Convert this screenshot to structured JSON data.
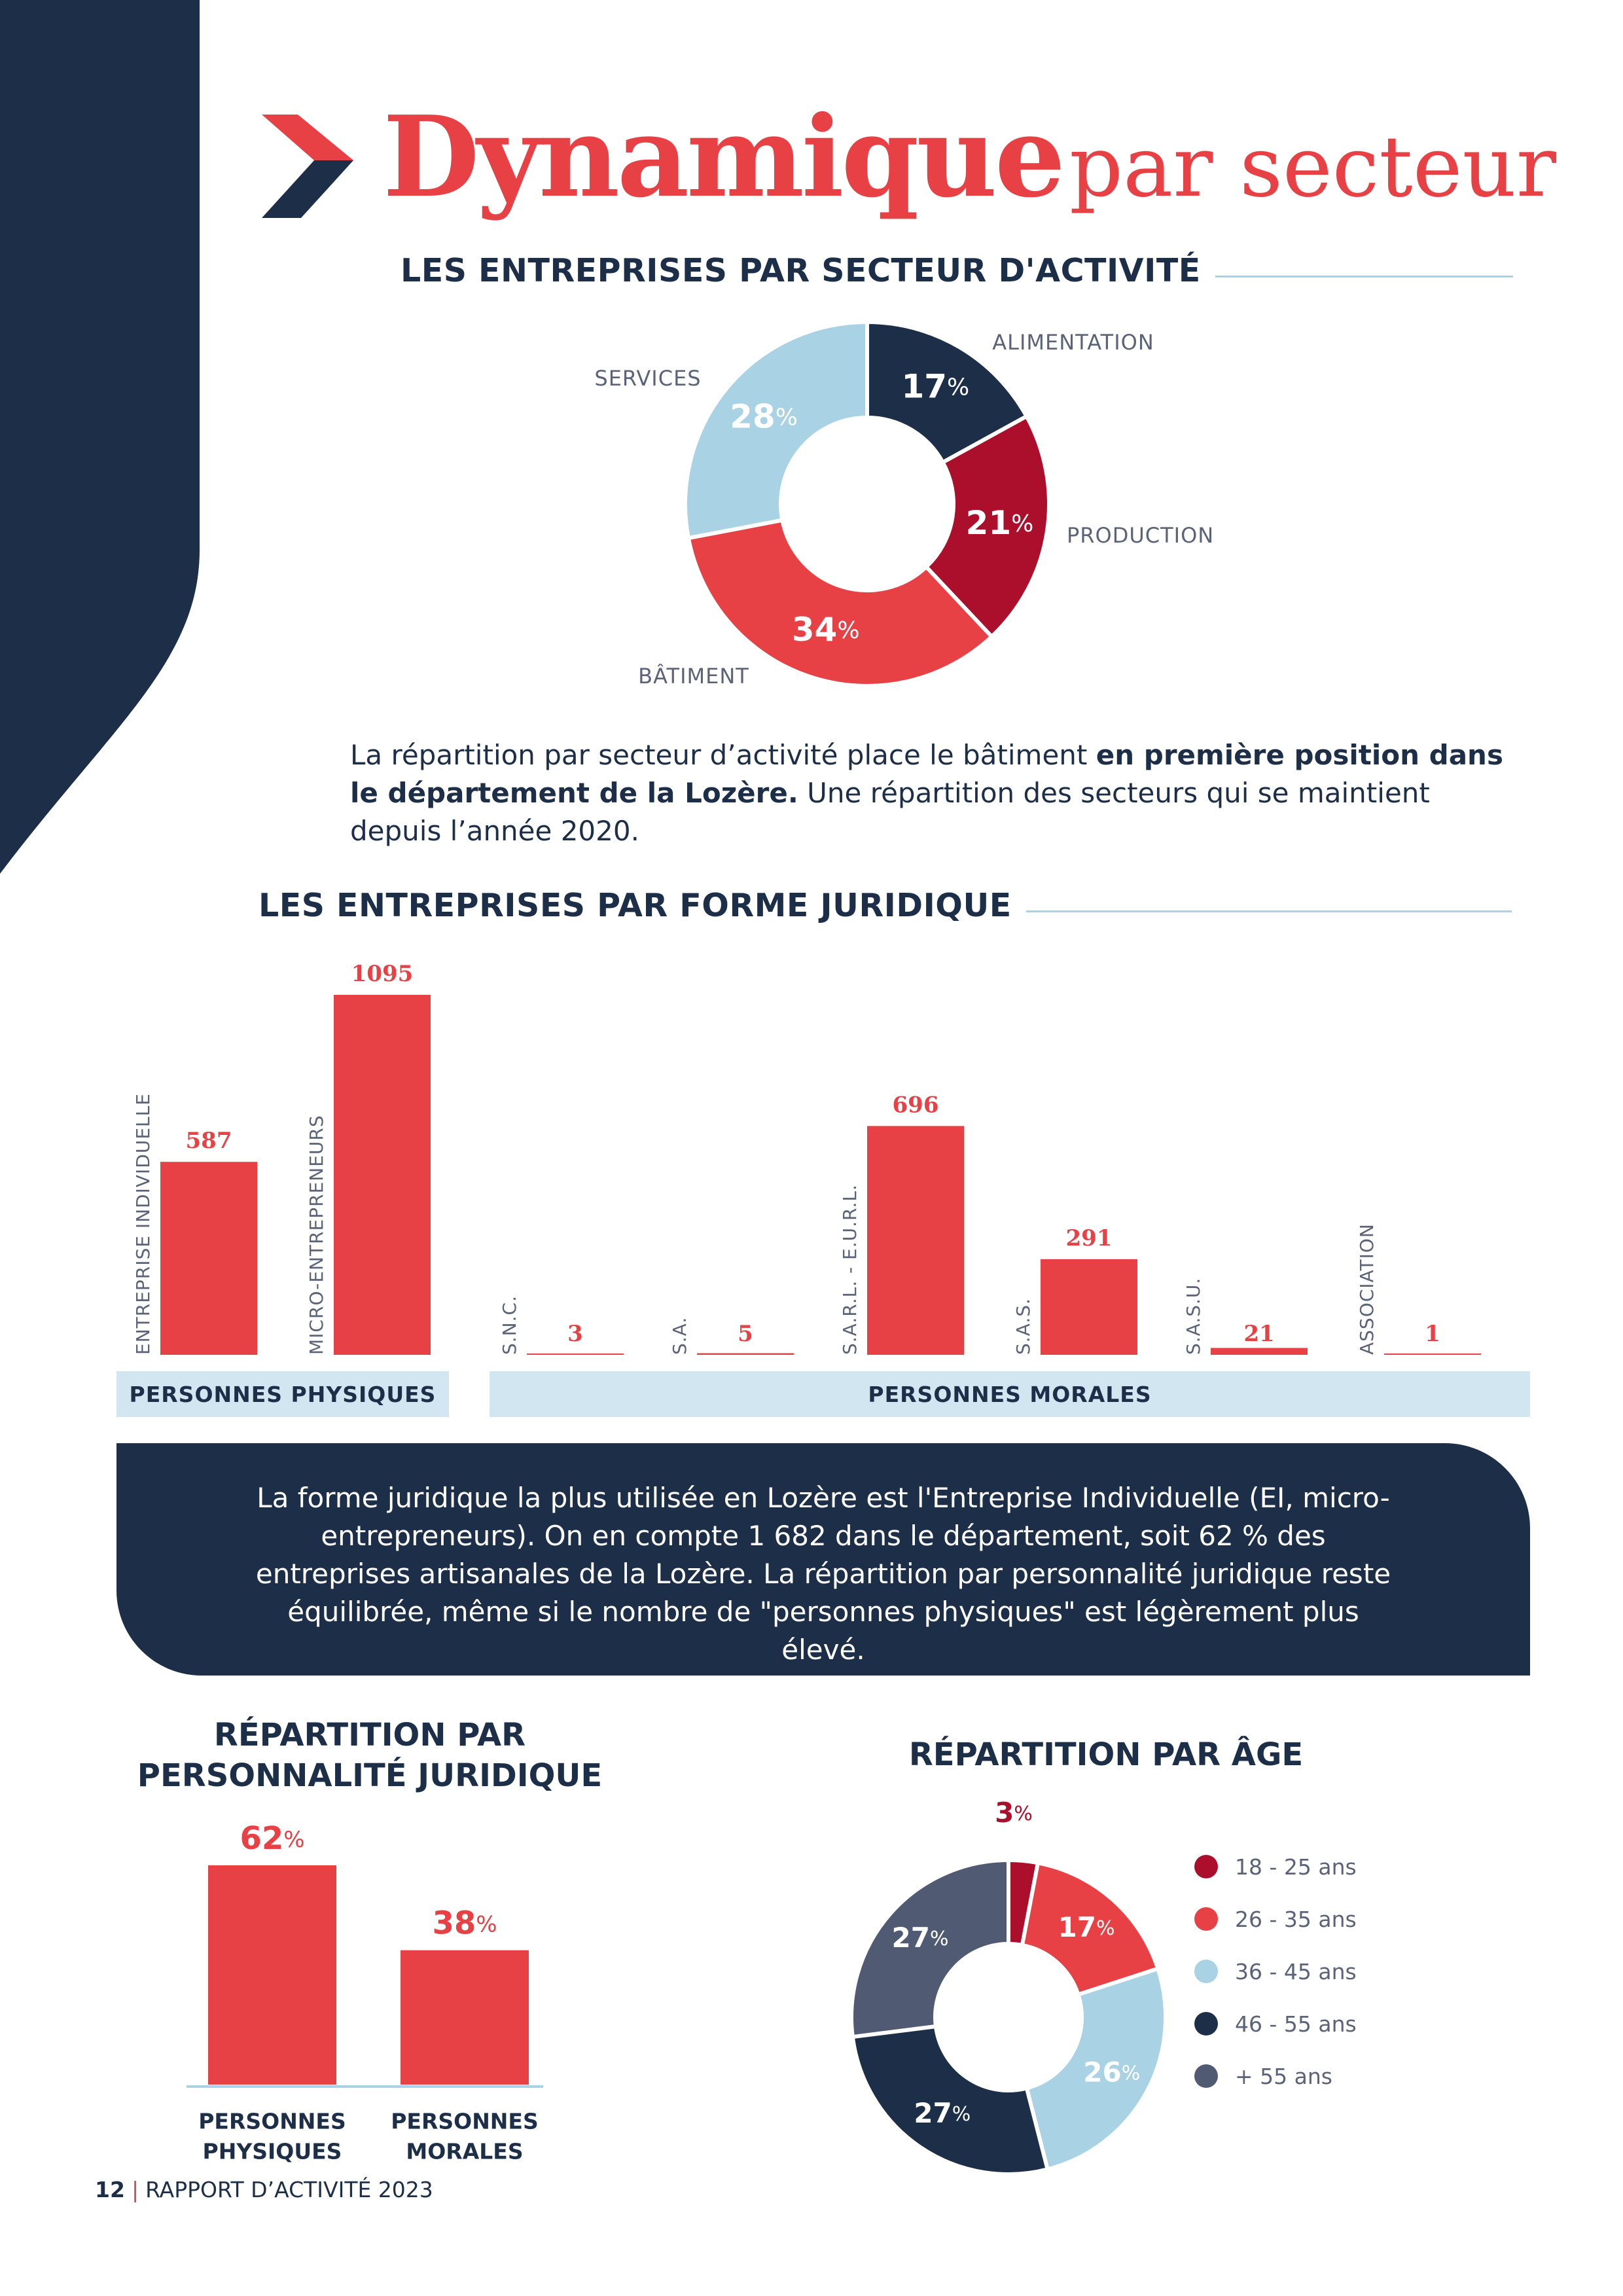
{
  "header": {
    "title_strong": "Dynamique",
    "title_light": "par secteur"
  },
  "sector": {
    "heading": "LES ENTREPRISES PAR SECTEUR D'ACTIVITÉ",
    "chart_data": {
      "type": "pie",
      "categories": [
        "ALIMENTATION",
        "PRODUCTION",
        "BÂTIMENT",
        "SERVICES"
      ],
      "values": [
        17,
        21,
        34,
        28
      ],
      "value_labels": [
        "17",
        "21",
        "34",
        "28"
      ],
      "unit": "%",
      "colors": [
        "#1d2e48",
        "#ac0f2c",
        "#e84145",
        "#a9d2e4"
      ]
    },
    "paragraph": {
      "part1": "La répartition par secteur d’activité place le bâtiment ",
      "bold": "en première position dans le département de la Lozère.",
      "part2": " Une répartition des secteurs qui se maintient depuis l’année 2020."
    }
  },
  "legal": {
    "heading": "LES ENTREPRISES PAR FORME JURIDIQUE",
    "chart_data": {
      "type": "bar",
      "categories": [
        "ENTREPRISE INDIVIDUELLE",
        "MICRO-ENTREPRENEURS",
        "S.N.C.",
        "S.A.",
        "S.A.R.L. - E.U.R.L.",
        "S.A.S.",
        "S.A.S.U.",
        "ASSOCIATION"
      ],
      "values": [
        587,
        1095,
        3,
        5,
        696,
        291,
        21,
        1
      ],
      "groups": [
        "PERSONNES PHYSIQUES",
        "PERSONNES MORALES"
      ],
      "color": "#e84145"
    },
    "group_physiques": "PERSONNES PHYSIQUES",
    "group_morales": "PERSONNES MORALES"
  },
  "info_box": {
    "text": "La forme juridique la plus utilisée en Lozère est l'Entreprise Individuelle (EI, micro-entrepreneurs). On en compte 1 682 dans le département, soit 62 % des entreprises artisanales de la Lozère. La répartition par personnalité juridique reste équilibrée, même si le nombre de \"personnes physiques\" est légèrement plus élevé."
  },
  "personality": {
    "title_line1": "RÉPARTITION PAR",
    "title_line2": "PERSONNALITÉ JURIDIQUE",
    "chart_data": {
      "type": "bar",
      "categories": [
        "PERSONNES PHYSIQUES",
        "PERSONNES MORALES"
      ],
      "category_lines": [
        [
          "PERSONNES",
          "PHYSIQUES"
        ],
        [
          "PERSONNES",
          "MORALES"
        ]
      ],
      "values": [
        62,
        38
      ],
      "value_labels": [
        "62",
        "38"
      ],
      "unit": "%",
      "color": "#e84145",
      "axis_color": "#a9d2e4"
    }
  },
  "age": {
    "title": "RÉPARTITION PAR ÂGE",
    "chart_data": {
      "type": "pie",
      "categories": [
        "18 - 25 ans",
        "26 - 35 ans",
        "36 - 45 ans",
        "46 - 55 ans",
        "+ 55 ans"
      ],
      "values": [
        3,
        17,
        26,
        27,
        27
      ],
      "value_labels": [
        "3",
        "17",
        "26",
        "27",
        "27"
      ],
      "unit": "%",
      "colors": [
        "#ac0f2c",
        "#e84145",
        "#a9d2e4",
        "#1d2e48",
        "#505a72"
      ]
    },
    "legend": [
      "18 - 25 ans",
      "26 - 35 ans",
      "36 - 45 ans",
      "46 - 55 ans",
      "+ 55 ans"
    ]
  },
  "footer": {
    "page": "12",
    "separator": "|",
    "text": "RAPPORT D’ACTIVITÉ 2023"
  }
}
